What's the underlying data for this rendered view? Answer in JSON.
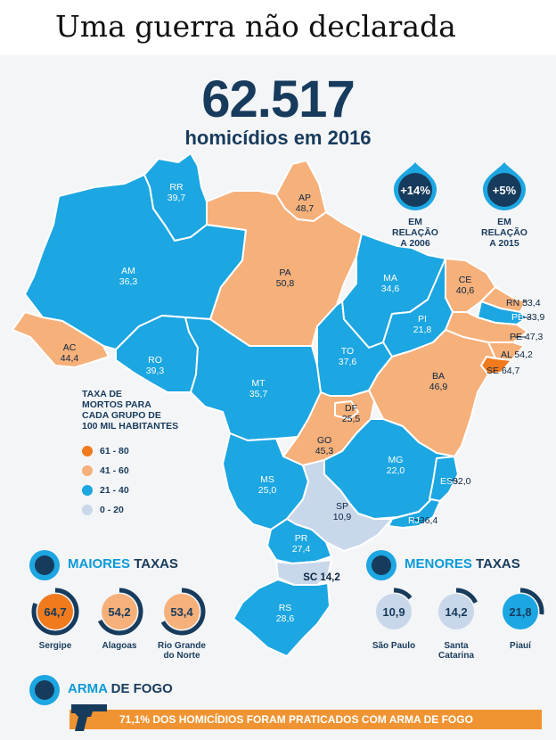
{
  "header": {
    "title": "Uma guerra não declarada"
  },
  "hero": {
    "total": "62.517",
    "subtitle": "homicídios em 2016"
  },
  "indicators": [
    {
      "value": "+14%",
      "label_line1": "EM RELAÇÃO",
      "label_line2": "A 2006"
    },
    {
      "value": "+5%",
      "label_line1": "EM RELAÇÃO",
      "label_line2": "A 2015"
    }
  ],
  "states": [
    {
      "code": "RR",
      "rate": "39,7"
    },
    {
      "code": "AP",
      "rate": "48,7"
    },
    {
      "code": "AM",
      "rate": "36,3"
    },
    {
      "code": "PA",
      "rate": "50,8"
    },
    {
      "code": "MA",
      "rate": "34,6"
    },
    {
      "code": "CE",
      "rate": "40,6"
    },
    {
      "code": "RN",
      "rate": "53,4"
    },
    {
      "code": "PB",
      "rate": "33,9"
    },
    {
      "code": "PE",
      "rate": "47,3"
    },
    {
      "code": "AL",
      "rate": "54,2"
    },
    {
      "code": "SE",
      "rate": "64,7"
    },
    {
      "code": "PI",
      "rate": "21,8"
    },
    {
      "code": "AC",
      "rate": "44,4"
    },
    {
      "code": "RO",
      "rate": "39,3"
    },
    {
      "code": "MT",
      "rate": "35,7"
    },
    {
      "code": "TO",
      "rate": "37,6"
    },
    {
      "code": "BA",
      "rate": "46,9"
    },
    {
      "code": "DF",
      "rate": "25,5"
    },
    {
      "code": "GO",
      "rate": "45,3"
    },
    {
      "code": "MG",
      "rate": "22,0"
    },
    {
      "code": "ES",
      "rate": "32,0"
    },
    {
      "code": "MS",
      "rate": "25,0"
    },
    {
      "code": "SP",
      "rate": "10,9"
    },
    {
      "code": "RJ",
      "rate": "36,4"
    },
    {
      "code": "PR",
      "rate": "27,4"
    },
    {
      "code": "SC",
      "rate": "14,2"
    },
    {
      "code": "RS",
      "rate": "28,6"
    }
  ],
  "legend": {
    "title_lines": [
      "TAXA DE",
      "MORTOS PARA",
      "CADA GRUPO DE",
      "100 MIL HABITANTES"
    ],
    "items": [
      {
        "range": "61 - 80",
        "color": "#f07a1c"
      },
      {
        "range": "41 - 60",
        "color": "#f6b07a"
      },
      {
        "range": "21 - 40",
        "color": "#1ca6e2"
      },
      {
        "range": "0 - 20",
        "color": "#c9d7ea"
      }
    ]
  },
  "colors": {
    "navy": "#173b5c",
    "blue": "#1ca6e2",
    "orange_dark": "#f07a1c",
    "orange_light": "#f6b07a",
    "light": "#c9d7ea",
    "bar": "#f09433"
  },
  "highest": {
    "title_a": "MAIORES",
    "title_b": "TAXAS",
    "items": [
      {
        "value": "64,7",
        "name_line1": "Sergipe",
        "name_line2": "",
        "fraction": 0.81
      },
      {
        "value": "54,2",
        "name_line1": "Alagoas",
        "name_line2": "",
        "fraction": 0.68
      },
      {
        "value": "53,4",
        "name_line1": "Rio Grande",
        "name_line2": "do Norte",
        "fraction": 0.67
      }
    ]
  },
  "lowest": {
    "title_a": "MENORES",
    "title_b": "TAXAS",
    "items": [
      {
        "value": "10,9",
        "name_line1": "São Paulo",
        "name_line2": "",
        "fraction": 0.14
      },
      {
        "value": "14,2",
        "name_line1": "Santa",
        "name_line2": "Catarina",
        "fraction": 0.18
      },
      {
        "value": "21,8",
        "name_line1": "Piauí",
        "name_line2": "",
        "fraction": 0.27
      }
    ]
  },
  "firearm": {
    "title_a": "ARMA",
    "title_b": "DE FOGO",
    "text": "71,1% DOS HOMICÍDIOS FORAM PRATICADOS COM ARMA DE FOGO",
    "icon": "pistol-icon"
  }
}
